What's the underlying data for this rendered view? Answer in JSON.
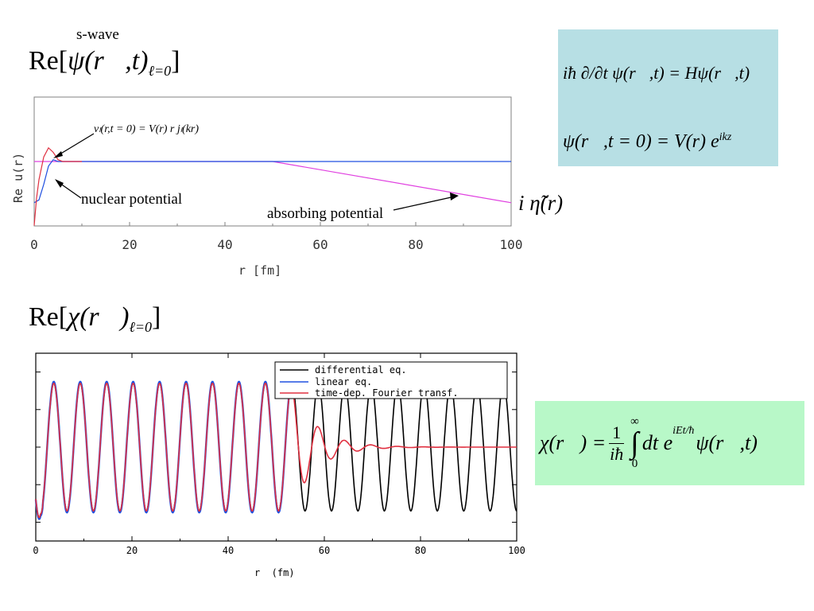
{
  "top": {
    "caption": "s-wave",
    "heading": {
      "pre": "Re[",
      "sym": "ψ",
      "args": "(r⃗,t)",
      "sub": "ℓ=0",
      "post": "]"
    },
    "ylabel": "Re u(r)",
    "xlabel": "r [fm]",
    "annotations": {
      "initial": "vₗ(r,t = 0) = V(r) r jₗ(kr)",
      "nuclear": "nuclear potential",
      "absorbing": "absorbing potential",
      "eta": "i η̃(r)"
    }
  },
  "bottom": {
    "heading": {
      "pre": "Re[",
      "sym": "χ",
      "args": "(r⃗)",
      "sub": "ℓ=0",
      "post": "]"
    },
    "xlabel": "r  (fm)",
    "legend": [
      "differential eq.",
      "linear eq.",
      "time-dep. Fourier transf."
    ]
  },
  "eq_box1": {
    "line1_lhs": "iħ ∂/∂t ψ(r⃗,t) = Hψ(r⃗,t)",
    "line2": "ψ(r⃗,t = 0) = V(r) e",
    "line2_sup": "ikz"
  },
  "eq_box2": {
    "lhs": "χ(r⃗) = ",
    "frac_num": "1",
    "frac_den": "iħ",
    "int_upper": "∞",
    "int_lower": "0",
    "body": "dt e",
    "body_sup": "iEt/ħ",
    "tail": "ψ(r⃗,t)"
  },
  "colors": {
    "box1_bg": "#b7dfe4",
    "box2_bg": "#b8f8c8",
    "magenta": "#e040e0",
    "blue": "#2050e0",
    "red": "#e03040",
    "black": "#000000"
  },
  "chart_data": [
    {
      "type": "line",
      "xlabel": "r [fm]",
      "ylabel": "Re u(r)",
      "xlim": [
        0,
        100
      ],
      "xticks": [
        0,
        20,
        40,
        60,
        80,
        100
      ],
      "series": [
        {
          "color": "blue",
          "x": [
            0,
            1,
            2,
            3,
            4,
            5,
            10,
            50,
            100
          ],
          "y": [
            -0.45,
            -0.42,
            -0.25,
            -0.05,
            0.02,
            0,
            0,
            0,
            0
          ]
        },
        {
          "color": "red",
          "x": [
            0,
            0.5,
            1,
            2,
            3,
            4,
            5,
            6,
            10
          ],
          "y": [
            -0.7,
            -0.4,
            -0.2,
            0.05,
            0.15,
            0.1,
            0.02,
            0,
            0
          ]
        },
        {
          "color": "magenta",
          "x": [
            0,
            50,
            100
          ],
          "y": [
            0,
            0,
            -0.45
          ]
        }
      ]
    },
    {
      "type": "line",
      "xlabel": "r  (fm)",
      "xlim": [
        0,
        100
      ],
      "xticks": [
        0,
        20,
        40,
        60,
        80,
        100
      ],
      "ylim": [
        -1.25,
        1.25
      ],
      "wave_period_fm": 5.5,
      "series": [
        {
          "name": "differential eq.",
          "color": "black",
          "amplitude": 0.85,
          "range": [
            0,
            100
          ]
        },
        {
          "name": "linear eq.",
          "color": "blue",
          "amplitude": 0.87,
          "range": [
            0,
            53
          ]
        },
        {
          "name": "time-dep. Fourier transf.",
          "color": "red",
          "amplitude": 0.85,
          "range": [
            0,
            100
          ],
          "decay_from": 53,
          "decay_length": 5
        }
      ]
    }
  ]
}
